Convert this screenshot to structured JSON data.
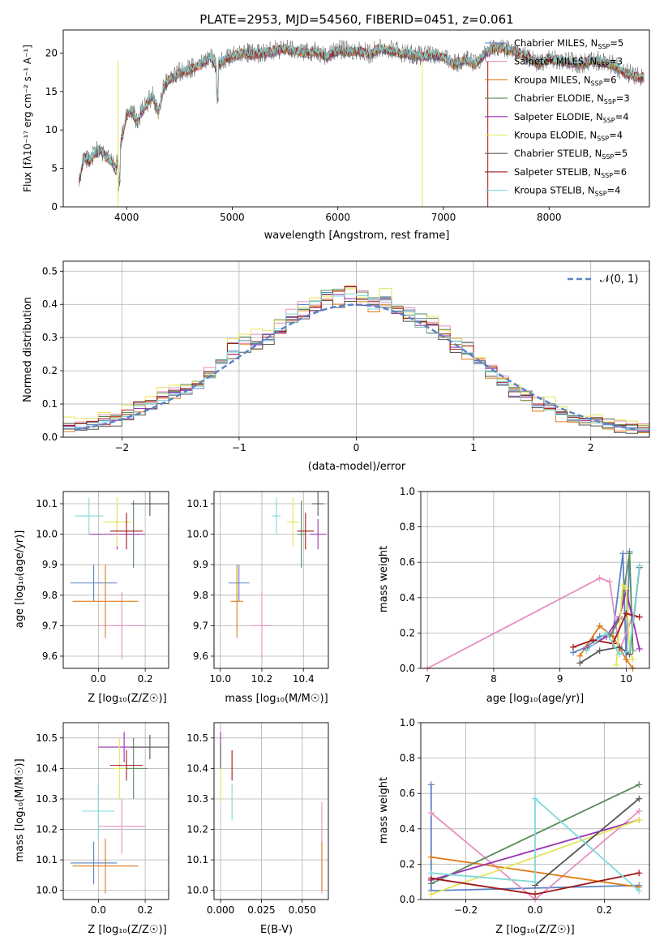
{
  "chart_data": [
    {
      "type": "line",
      "title": "PLATE=2953, MJD=54560, FIBERID=0451, z=0.061",
      "xlabel": "wavelength [Angstrom, rest frame]",
      "ylabel": "Flux [fλ10⁻¹⁷ erg cm⁻² s⁻¹ A⁻¹]",
      "xlim": [
        3400,
        8950
      ],
      "ylim": [
        0,
        23
      ],
      "xticks": [
        4000,
        5000,
        6000,
        7000,
        8000
      ],
      "yticks": [
        0,
        5,
        10,
        15,
        20
      ],
      "legend_position": "right",
      "series": [
        {
          "name": "Chabrier MILES, N",
          "nssp": "5",
          "color": "#5b84c4"
        },
        {
          "name": "Salpeter MILES, N",
          "nssp": "3",
          "color": "#e68fc0"
        },
        {
          "name": "Kroupa MILES, N",
          "nssp": "6",
          "color": "#e07b1a"
        },
        {
          "name": "Chabrier ELODIE, N",
          "nssp": "3",
          "color": "#5a8a5a"
        },
        {
          "name": "Salpeter ELODIE, N",
          "nssp": "4",
          "color": "#9b30b0"
        },
        {
          "name": "Kroupa ELODIE, N",
          "nssp": "4",
          "color": "#e5e55a"
        },
        {
          "name": "Chabrier STELIB, N",
          "nssp": "5",
          "color": "#555555"
        },
        {
          "name": "Salpeter STELIB, N",
          "nssp": "6",
          "color": "#a01818"
        },
        {
          "name": "Kroupa STELIB, N",
          "nssp": "4",
          "color": "#7fd8d8"
        }
      ],
      "spectrum": {
        "x": [
          3550,
          3600,
          3650,
          3700,
          3750,
          3800,
          3850,
          3900,
          3950,
          4000,
          4050,
          4100,
          4150,
          4200,
          4250,
          4300,
          4350,
          4400,
          4450,
          4500,
          4600,
          4700,
          4800,
          4850,
          4900,
          5000,
          5100,
          5200,
          5300,
          5400,
          5500,
          5600,
          5700,
          5800,
          5900,
          6000,
          6100,
          6200,
          6300,
          6400,
          6500,
          6600,
          6700,
          6800,
          6900,
          7000,
          7100,
          7200,
          7300,
          7400,
          7500,
          7600,
          7700,
          7800,
          7900,
          8000,
          8100,
          8200,
          8300,
          8400,
          8500,
          8600,
          8700,
          8800,
          8900
        ],
        "y": [
          3.5,
          6.5,
          5.8,
          7.0,
          7.5,
          6.5,
          6.0,
          5.0,
          8.5,
          12.0,
          12.5,
          11.0,
          12.5,
          13.5,
          14.5,
          12.0,
          15.5,
          16.5,
          16.8,
          17.5,
          17.8,
          18.5,
          19.5,
          18.0,
          19.0,
          19.5,
          20.0,
          19.8,
          20.0,
          20.3,
          20.5,
          20.2,
          20.0,
          20.2,
          19.5,
          20.4,
          20.2,
          20.3,
          19.8,
          20.6,
          20.3,
          20.0,
          19.8,
          19.5,
          19.8,
          19.5,
          18.5,
          19.2,
          18.5,
          20.0,
          20.8,
          20.5,
          20.0,
          19.5,
          18.5,
          19.3,
          19.0,
          18.8,
          18.5,
          19.0,
          18.8,
          18.5,
          17.5,
          17.0,
          16.8
        ]
      }
    },
    {
      "type": "bar",
      "xlabel": "(data-model)/error",
      "ylabel": "Normed distribution",
      "xlim": [
        -2.5,
        2.5
      ],
      "ylim": [
        0,
        0.53
      ],
      "xticks": [
        -2,
        -1,
        0,
        1,
        2
      ],
      "xtick_labels": [
        "−2",
        "−1",
        "0",
        "1",
        "2"
      ],
      "yticks": [
        0.0,
        0.1,
        0.2,
        0.3,
        0.4,
        0.5
      ],
      "ytick_labels": [
        "0.0",
        "0.1",
        "0.2",
        "0.3",
        "0.4",
        "0.5"
      ],
      "legend": "𝒩(0, 1)",
      "legend_position": "top-right",
      "bin_centers": [
        -2.45,
        -2.35,
        -2.25,
        -2.15,
        -2.05,
        -1.95,
        -1.85,
        -1.75,
        -1.65,
        -1.55,
        -1.45,
        -1.35,
        -1.25,
        -1.15,
        -1.05,
        -0.95,
        -0.85,
        -0.75,
        -0.65,
        -0.55,
        -0.45,
        -0.35,
        -0.25,
        -0.15,
        -0.05,
        0.05,
        0.15,
        0.25,
        0.35,
        0.45,
        0.55,
        0.65,
        0.75,
        0.85,
        0.95,
        1.05,
        1.15,
        1.25,
        1.35,
        1.45,
        1.55,
        1.65,
        1.75,
        1.85,
        1.95,
        2.05,
        2.15,
        2.25,
        2.35,
        2.45
      ],
      "values": [
        0.035,
        0.03,
        0.04,
        0.05,
        0.055,
        0.07,
        0.095,
        0.1,
        0.12,
        0.135,
        0.145,
        0.155,
        0.19,
        0.22,
        0.26,
        0.29,
        0.28,
        0.3,
        0.33,
        0.36,
        0.38,
        0.4,
        0.42,
        0.43,
        0.44,
        0.42,
        0.4,
        0.41,
        0.39,
        0.37,
        0.35,
        0.33,
        0.31,
        0.28,
        0.26,
        0.23,
        0.2,
        0.17,
        0.14,
        0.12,
        0.1,
        0.09,
        0.07,
        0.06,
        0.055,
        0.05,
        0.04,
        0.035,
        0.03,
        0.025
      ],
      "bar_colors": [
        "#5b84c4",
        "#e68fc0",
        "#e07b1a",
        "#5a8a5a",
        "#9b30b0",
        "#e5e55a",
        "#555555",
        "#a01818",
        "#7fd8d8"
      ],
      "bar_offsets": [
        0.0,
        0.012,
        -0.01,
        0.008,
        -0.006,
        0.015,
        -0.012,
        0.005,
        -0.004
      ],
      "gaussian": {
        "mu": 0,
        "sigma": 1,
        "color": "#5b84c4"
      }
    },
    {
      "type": "scatter",
      "xlabel": "Z [log₁₀(Z/Z☉)]",
      "ylabel": "age  [log₁₀(age/yr)]",
      "xlim": [
        -0.15,
        0.3
      ],
      "ylim": [
        9.56,
        10.14
      ],
      "xticks": [
        0.0,
        0.2
      ],
      "xtick_labels": [
        "0.0",
        "0.2"
      ],
      "yticks": [
        9.6,
        9.7,
        9.8,
        9.9,
        10.0,
        10.1
      ],
      "ytick_labels": [
        "9.6",
        "9.7",
        "9.8",
        "9.9",
        "10.0",
        "10.1"
      ],
      "points": [
        {
          "x": -0.02,
          "y": 9.84,
          "xerr": 0.1,
          "yerr": 0.06,
          "color": "#5b84c4"
        },
        {
          "x": 0.1,
          "y": 9.7,
          "xerr": 0.1,
          "yerr": 0.11,
          "color": "#e68fc0"
        },
        {
          "x": 0.03,
          "y": 9.78,
          "xerr": 0.14,
          "yerr": 0.12,
          "color": "#e07b1a"
        },
        {
          "x": 0.15,
          "y": 10.0,
          "xerr": 0.03,
          "yerr": 0.11,
          "color": "#5a8a5a"
        },
        {
          "x": 0.08,
          "y": 10.0,
          "xerr": 0.12,
          "yerr": 0.05,
          "color": "#9b30b0"
        },
        {
          "x": 0.08,
          "y": 10.04,
          "xerr": 0.06,
          "yerr": 0.08,
          "color": "#e5e55a"
        },
        {
          "x": 0.22,
          "y": 10.1,
          "xerr": 0.08,
          "yerr": 0.04,
          "color": "#555555"
        },
        {
          "x": 0.12,
          "y": 10.01,
          "xerr": 0.07,
          "yerr": 0.06,
          "color": "#a01818"
        },
        {
          "x": -0.04,
          "y": 10.06,
          "xerr": 0.06,
          "yerr": 0.06,
          "color": "#7fd8d8"
        }
      ]
    },
    {
      "type": "scatter",
      "xlabel": "mass [log₁₀(M/M☉)]",
      "ylabel": "",
      "xlim": [
        9.97,
        10.52
      ],
      "ylim": [
        9.56,
        10.14
      ],
      "xticks": [
        10.0,
        10.2,
        10.4
      ],
      "xtick_labels": [
        "10.0",
        "10.2",
        "10.4"
      ],
      "yticks": [
        9.6,
        9.7,
        9.8,
        9.9,
        10.0,
        10.1
      ],
      "ytick_labels": [
        "9.6",
        "9.7",
        "9.8",
        "9.9",
        "10.0",
        "10.1"
      ],
      "points": [
        {
          "x": 10.09,
          "y": 9.84,
          "xerr": 0.05,
          "yerr": 0.06,
          "color": "#5b84c4"
        },
        {
          "x": 10.2,
          "y": 9.7,
          "xerr": 0.05,
          "yerr": 0.11,
          "color": "#e68fc0"
        },
        {
          "x": 10.08,
          "y": 9.78,
          "xerr": 0.03,
          "yerr": 0.12,
          "color": "#e07b1a"
        },
        {
          "x": 10.39,
          "y": 10.0,
          "xerr": 0.02,
          "yerr": 0.11,
          "color": "#5a8a5a"
        },
        {
          "x": 10.47,
          "y": 10.0,
          "xerr": 0.04,
          "yerr": 0.05,
          "color": "#9b30b0"
        },
        {
          "x": 10.35,
          "y": 10.04,
          "xerr": 0.03,
          "yerr": 0.08,
          "color": "#e5e55a"
        },
        {
          "x": 10.47,
          "y": 10.1,
          "xerr": 0.03,
          "yerr": 0.04,
          "color": "#555555"
        },
        {
          "x": 10.41,
          "y": 10.01,
          "xerr": 0.04,
          "yerr": 0.06,
          "color": "#a01818"
        },
        {
          "x": 10.27,
          "y": 10.06,
          "xerr": 0.02,
          "yerr": 0.06,
          "color": "#7fd8d8"
        }
      ]
    },
    {
      "type": "line",
      "xlabel": "age  [log₁₀(age/yr)]",
      "ylabel": "mass weight",
      "xlim": [
        6.9,
        10.35
      ],
      "ylim": [
        0,
        1
      ],
      "xticks": [
        7,
        8,
        9,
        10
      ],
      "xtick_labels": [
        "7",
        "8",
        "9",
        "10"
      ],
      "yticks": [
        0.0,
        0.2,
        0.4,
        0.6,
        0.8,
        1.0
      ],
      "ytick_labels": [
        "0.0",
        "0.2",
        "0.4",
        "0.6",
        "0.8",
        "1.0"
      ],
      "series": [
        {
          "color": "#5b84c4",
          "x": [
            9.2,
            9.4,
            9.6,
            9.8,
            9.95,
            10.0,
            10.05
          ],
          "y": [
            0.09,
            0.12,
            0.18,
            0.2,
            0.65,
            0.05,
            0.66
          ]
        },
        {
          "color": "#e68fc0",
          "x": [
            7.0,
            9.6,
            9.75,
            9.9,
            10.1
          ],
          "y": [
            0.0,
            0.51,
            0.49,
            0.1,
            0.3
          ]
        },
        {
          "color": "#e07b1a",
          "x": [
            9.3,
            9.6,
            9.8,
            10.0,
            10.1
          ],
          "y": [
            0.07,
            0.24,
            0.18,
            0.05,
            0.0
          ]
        },
        {
          "color": "#5a8a5a",
          "x": [
            9.75,
            9.9,
            10.05,
            10.1
          ],
          "y": [
            0.18,
            0.28,
            0.65,
            0.1
          ]
        },
        {
          "color": "#9b30b0",
          "x": [
            9.4,
            9.7,
            9.9,
            10.0,
            10.2
          ],
          "y": [
            0.11,
            0.18,
            0.29,
            0.44,
            0.11
          ]
        },
        {
          "color": "#e5e55a",
          "x": [
            9.85,
            9.95,
            10.0,
            10.05,
            10.1
          ],
          "y": [
            0.02,
            0.47,
            0.45,
            0.1,
            0.05
          ]
        },
        {
          "color": "#555555",
          "x": [
            9.3,
            9.6,
            9.9,
            10.05,
            10.2
          ],
          "y": [
            0.03,
            0.1,
            0.12,
            0.08,
            0.57
          ]
        },
        {
          "color": "#a01818",
          "x": [
            9.2,
            9.5,
            9.8,
            10.0,
            10.2
          ],
          "y": [
            0.12,
            0.16,
            0.14,
            0.31,
            0.29
          ]
        },
        {
          "color": "#7fd8d8",
          "x": [
            9.4,
            9.7,
            9.9,
            10.05,
            10.2
          ],
          "y": [
            0.1,
            0.2,
            0.08,
            0.1,
            0.58
          ]
        }
      ]
    },
    {
      "type": "scatter",
      "xlabel": "Z [log₁₀(Z/Z☉)]",
      "ylabel": "mass [log₁₀(M/M☉)]",
      "xlim": [
        -0.15,
        0.3
      ],
      "ylim": [
        9.97,
        10.55
      ],
      "xticks": [
        0.0,
        0.2
      ],
      "xtick_labels": [
        "0.0",
        "0.2"
      ],
      "yticks": [
        10.0,
        10.1,
        10.2,
        10.3,
        10.4,
        10.5
      ],
      "ytick_labels": [
        "10.0",
        "10.1",
        "10.2",
        "10.3",
        "10.4",
        "10.5"
      ],
      "points": [
        {
          "x": -0.02,
          "y": 10.09,
          "xerr": 0.1,
          "yerr": 0.07,
          "color": "#5b84c4"
        },
        {
          "x": 0.1,
          "y": 10.21,
          "xerr": 0.1,
          "yerr": 0.09,
          "color": "#e68fc0"
        },
        {
          "x": 0.03,
          "y": 10.08,
          "xerr": 0.14,
          "yerr": 0.09,
          "color": "#e07b1a"
        },
        {
          "x": 0.15,
          "y": 10.4,
          "xerr": 0.06,
          "yerr": 0.1,
          "color": "#5a8a5a"
        },
        {
          "x": 0.11,
          "y": 10.47,
          "xerr": 0.11,
          "yerr": 0.05,
          "color": "#9b30b0"
        },
        {
          "x": 0.09,
          "y": 10.4,
          "xerr": 0.03,
          "yerr": 0.1,
          "color": "#e5e55a"
        },
        {
          "x": 0.22,
          "y": 10.47,
          "xerr": 0.08,
          "yerr": 0.04,
          "color": "#555555"
        },
        {
          "x": 0.12,
          "y": 10.41,
          "xerr": 0.07,
          "yerr": 0.05,
          "color": "#a01818"
        },
        {
          "x": 0.0,
          "y": 10.26,
          "xerr": 0.07,
          "yerr": 0.09,
          "color": "#7fd8d8"
        }
      ]
    },
    {
      "type": "scatter",
      "xlabel": "E(B-V)",
      "ylabel": "",
      "xlim": [
        -0.004,
        0.066
      ],
      "ylim": [
        9.97,
        10.55
      ],
      "xticks": [
        0.0,
        0.025,
        0.05
      ],
      "xtick_labels": [
        "0.000",
        "0.025",
        "0.050"
      ],
      "yticks": [
        10.0,
        10.1,
        10.2,
        10.3,
        10.4,
        10.5
      ],
      "ytick_labels": [
        "10.0",
        "10.1",
        "10.2",
        "10.3",
        "10.4",
        "10.5"
      ],
      "points": [
        {
          "x": 0.0,
          "y": 10.47,
          "xerr": 0.0,
          "yerr": 0.05,
          "color": "#9b30b0"
        },
        {
          "x": 0.0,
          "y": 10.36,
          "xerr": 0.0,
          "yerr": 0.07,
          "color": "#e5e55a"
        },
        {
          "x": 0.0,
          "y": 10.44,
          "xerr": 0.0,
          "yerr": 0.04,
          "color": "#555555"
        },
        {
          "x": 0.007,
          "y": 10.41,
          "xerr": 0.0,
          "yerr": 0.05,
          "color": "#a01818"
        },
        {
          "x": 0.007,
          "y": 10.29,
          "xerr": 0.0,
          "yerr": 0.06,
          "color": "#7fd8d8"
        },
        {
          "x": 0.062,
          "y": 10.14,
          "xerr": 0.0,
          "yerr": 0.15,
          "color": "#e68fc0"
        },
        {
          "x": 0.062,
          "y": 10.08,
          "xerr": 0.0,
          "yerr": 0.08,
          "color": "#e07b1a"
        }
      ]
    },
    {
      "type": "line",
      "xlabel": "Z [log₁₀(Z/Z☉)]",
      "ylabel": "mass weight",
      "xlim": [
        -0.33,
        0.33
      ],
      "ylim": [
        0,
        1
      ],
      "xticks": [
        -0.2,
        0.0,
        0.2
      ],
      "xtick_labels": [
        "−0.2",
        "0.0",
        "0.2"
      ],
      "yticks": [
        0.0,
        0.2,
        0.4,
        0.6,
        0.8,
        1.0
      ],
      "ytick_labels": [
        "0.0",
        "0.2",
        "0.4",
        "0.6",
        "0.8",
        "1.0"
      ],
      "series": [
        {
          "color": "#5b84c4",
          "x": [
            -0.3,
            -0.3,
            0.3
          ],
          "y": [
            0.65,
            0.05,
            0.08
          ]
        },
        {
          "color": "#e68fc0",
          "x": [
            -0.3,
            0.0,
            0.3
          ],
          "y": [
            0.49,
            0.0,
            0.5
          ]
        },
        {
          "color": "#e07b1a",
          "x": [
            -0.3,
            0.3
          ],
          "y": [
            0.24,
            0.07
          ]
        },
        {
          "color": "#5a8a5a",
          "x": [
            -0.3,
            0.3
          ],
          "y": [
            0.09,
            0.65
          ]
        },
        {
          "color": "#9b30b0",
          "x": [
            -0.3,
            0.3
          ],
          "y": [
            0.11,
            0.45
          ]
        },
        {
          "color": "#e5e55a",
          "x": [
            -0.3,
            0.3
          ],
          "y": [
            0.03,
            0.45
          ]
        },
        {
          "color": "#555555",
          "x": [
            0.0,
            0.3
          ],
          "y": [
            0.08,
            0.57
          ]
        },
        {
          "color": "#a01818",
          "x": [
            -0.3,
            0.0,
            0.3
          ],
          "y": [
            0.12,
            0.03,
            0.15
          ]
        },
        {
          "color": "#7fd8d8",
          "x": [
            -0.3,
            0.0,
            0.0,
            0.3
          ],
          "y": [
            0.15,
            0.1,
            0.57,
            0.05
          ]
        }
      ]
    }
  ]
}
